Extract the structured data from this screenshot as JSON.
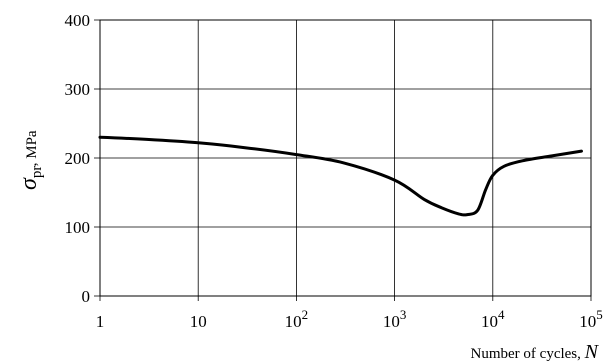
{
  "chart_data": {
    "type": "line",
    "x_scale": "log",
    "xlim": [
      1,
      100000
    ],
    "ylim": [
      0,
      400
    ],
    "grid": true,
    "x_ticks": [
      {
        "value": 1,
        "base": "1",
        "exp": ""
      },
      {
        "value": 10,
        "base": "10",
        "exp": ""
      },
      {
        "value": 100,
        "base": "10",
        "exp": "2"
      },
      {
        "value": 1000,
        "base": "10",
        "exp": "3"
      },
      {
        "value": 10000,
        "base": "10",
        "exp": "4"
      },
      {
        "value": 100000,
        "base": "10",
        "exp": "5"
      }
    ],
    "y_ticks": [
      0,
      100,
      200,
      300,
      400
    ],
    "xlabel": {
      "text": "Number of cycles, ",
      "variable": "N"
    },
    "ylabel": {
      "symbol": "σ",
      "subscript": "pr",
      "unit": ", MPa"
    },
    "series": [
      {
        "x": [
          1,
          3,
          10,
          30,
          100,
          300,
          1000,
          2000,
          3000,
          4500,
          5500,
          7000,
          8500,
          10000,
          13000,
          20000,
          40000,
          80000
        ],
        "y": [
          230,
          227,
          222,
          215,
          205,
          193,
          168,
          140,
          128,
          119,
          118,
          124,
          155,
          175,
          188,
          196,
          203,
          210
        ]
      }
    ]
  }
}
